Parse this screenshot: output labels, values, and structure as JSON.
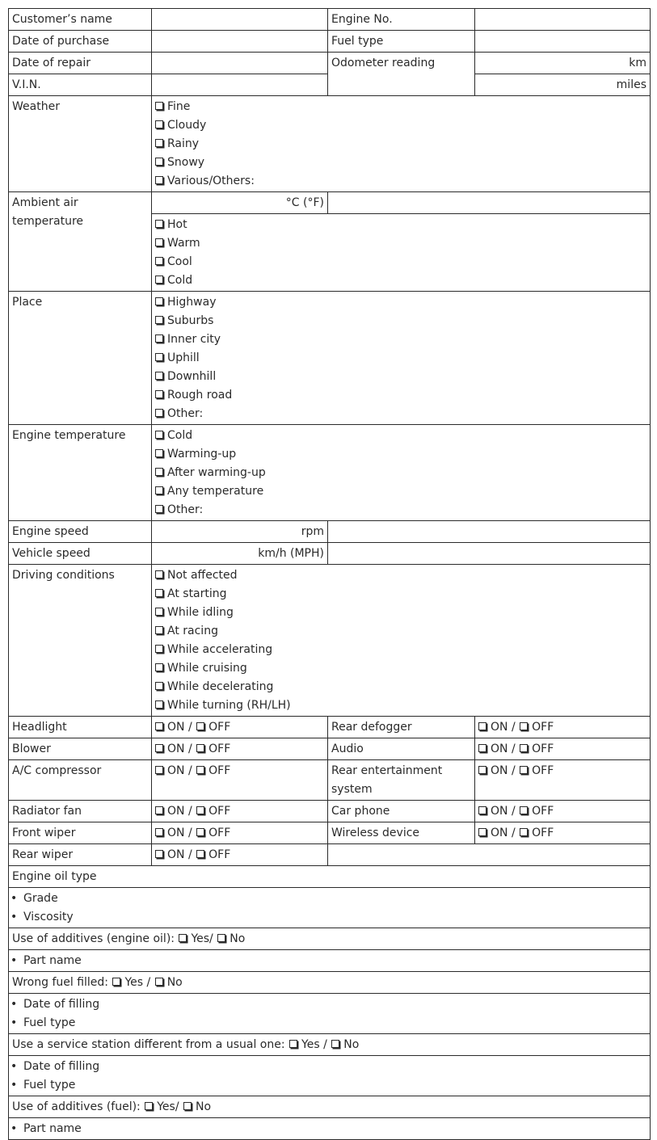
{
  "header": {
    "customer_name": "Customer’s name",
    "engine_no": "Engine No.",
    "date_of_purchase": "Date of purchase",
    "fuel_type": "Fuel type",
    "date_of_repair": "Date of repair",
    "odometer_reading": "Odometer reading",
    "km": "km",
    "vin": "V.I.N.",
    "miles": "miles"
  },
  "weather": {
    "label": "Weather",
    "options": [
      "Fine",
      "Cloudy",
      "Rainy",
      "Snowy",
      "Various/Others:"
    ]
  },
  "ambient": {
    "label": "Ambient air temperature",
    "unit": "°C (°F)",
    "options": [
      "Hot",
      "Warm",
      "Cool",
      "Cold"
    ]
  },
  "place": {
    "label": "Place",
    "options": [
      "Highway",
      "Suburbs",
      "Inner city",
      "Uphill",
      "Downhill",
      "Rough road",
      "Other:"
    ]
  },
  "engine_temperature": {
    "label": "Engine temperature",
    "options": [
      "Cold",
      "Warming-up",
      "After warming-up",
      "Any temperature",
      "Other:"
    ]
  },
  "engine_speed": {
    "label": "Engine speed",
    "unit": "rpm"
  },
  "vehicle_speed": {
    "label": "Vehicle speed",
    "unit": "km/h (MPH)"
  },
  "driving_conditions": {
    "label": "Driving conditions",
    "options": [
      "Not affected",
      "At starting",
      "While idling",
      "At racing",
      "While accelerating",
      "While cruising",
      "While decelerating",
      "While turning (RH/LH)"
    ]
  },
  "on_off": {
    "on": "ON",
    "sep": "/",
    "off": "OFF"
  },
  "devices": {
    "headlight": "Headlight",
    "rear_defogger": "Rear defogger",
    "blower": "Blower",
    "audio": "Audio",
    "ac_compressor": "A/C compressor",
    "rear_entertainment": "Rear entertainment system",
    "radiator_fan": "Radiator fan",
    "car_phone": "Car phone",
    "front_wiper": "Front wiper",
    "wireless_device": "Wireless device",
    "rear_wiper": "Rear wiper"
  },
  "engine_oil": {
    "label": "Engine oil type",
    "bullets": [
      "Grade",
      "Viscosity"
    ]
  },
  "additives_oil": {
    "label": "Use of additives (engine oil):",
    "yes": "Yes/",
    "no": "No",
    "bullets": [
      "Part name"
    ]
  },
  "wrong_fuel": {
    "label": "Wrong fuel filled:",
    "yes": "Yes /",
    "no": "No",
    "bullets": [
      "Date of filling",
      "Fuel type"
    ]
  },
  "service_station": {
    "label": "Use a service station different from a usual one:",
    "yes": "Yes /",
    "no": "No",
    "bullets": [
      "Date of filling",
      "Fuel type"
    ]
  },
  "additives_fuel": {
    "label": "Use of additives (fuel):",
    "yes": "Yes/",
    "no": "No",
    "bullets": [
      "Part name"
    ]
  }
}
